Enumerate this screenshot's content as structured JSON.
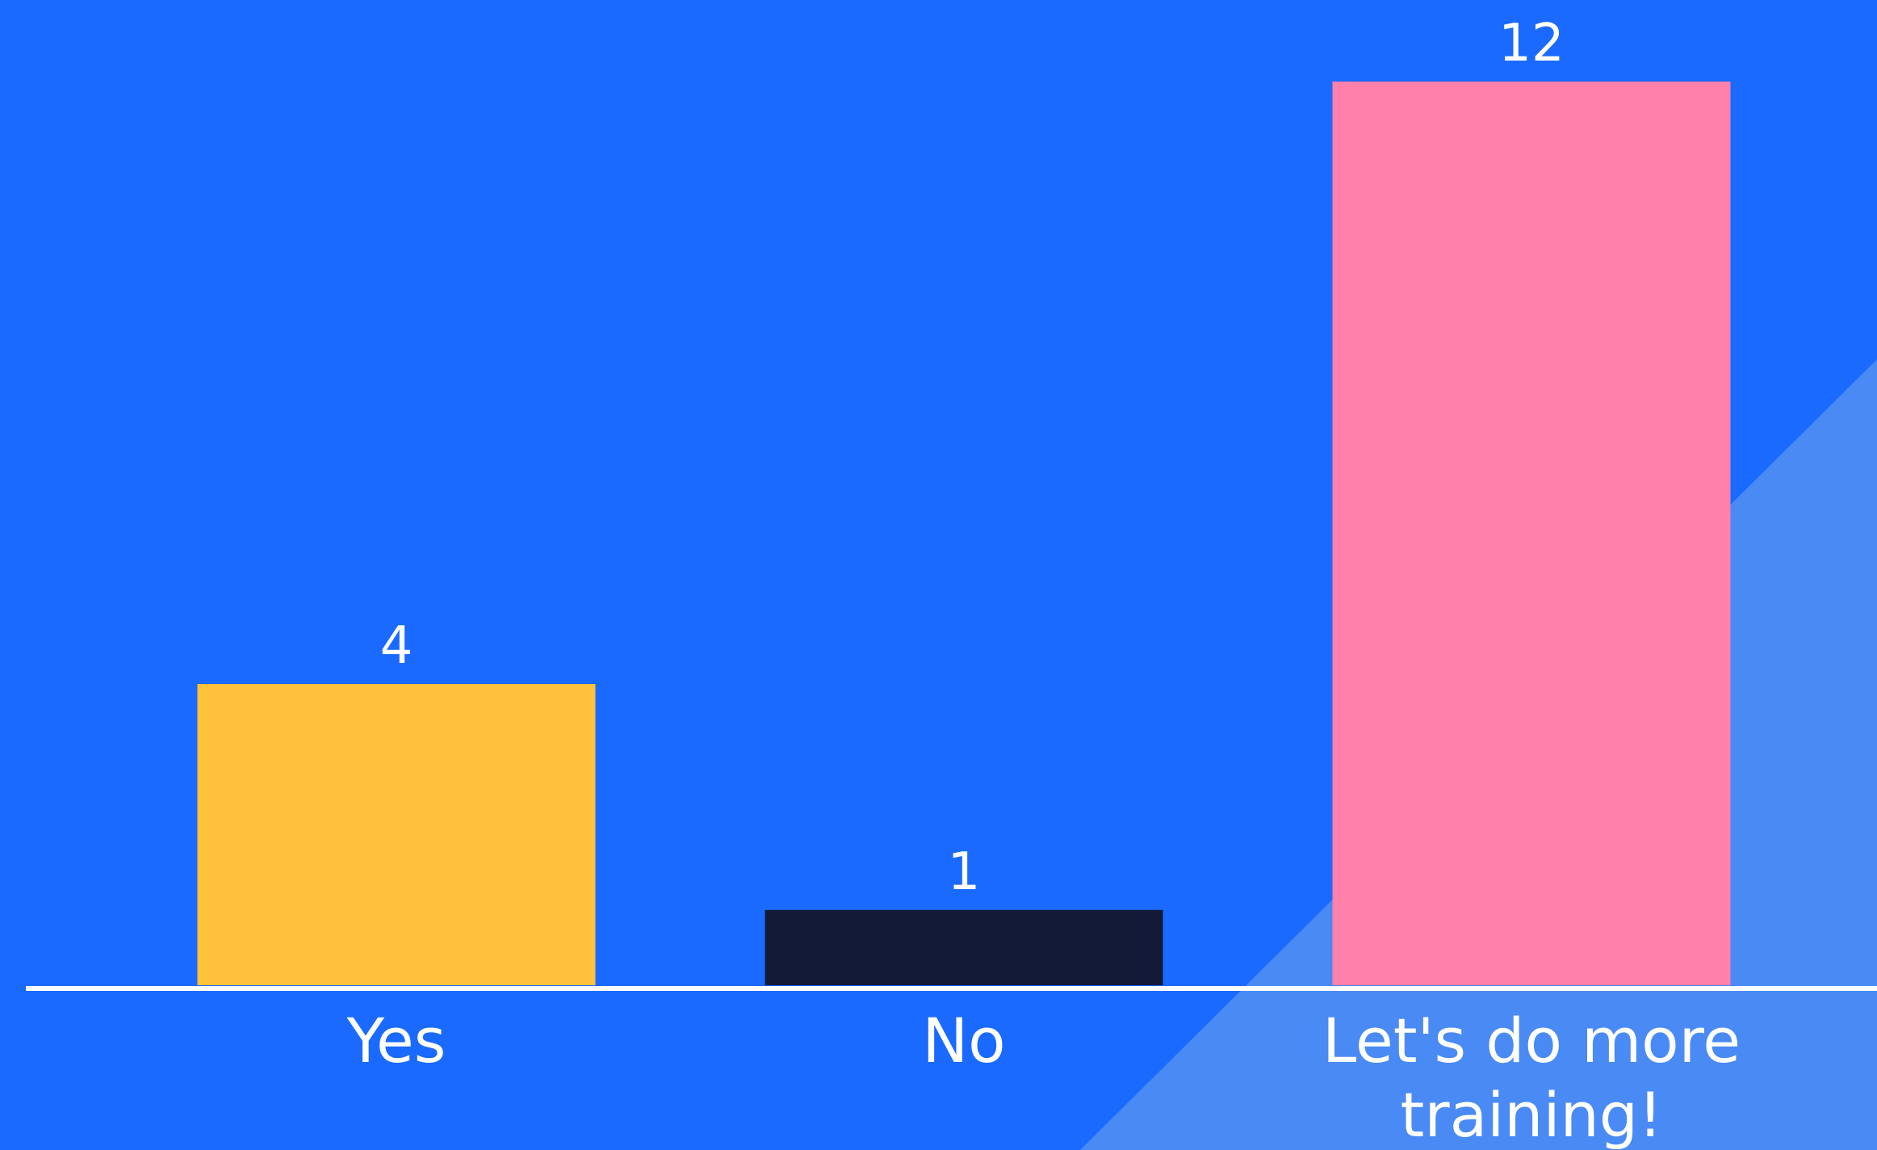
{
  "colors": {
    "background": "#1B6AFF",
    "background_accent": "#4A8AF5",
    "axis": "#FFFFFF",
    "text": "#FFFFFF"
  },
  "chart_data": {
    "type": "bar",
    "categories": [
      "Yes",
      "No",
      "Let's do more training!"
    ],
    "category_lines": [
      [
        "Yes"
      ],
      [
        "No"
      ],
      [
        "Let's do more",
        "training!"
      ]
    ],
    "values": [
      4,
      1,
      12
    ],
    "bar_colors": [
      "#FFC23A",
      "#131A38",
      "#FF80AA"
    ],
    "data_labels": [
      "4",
      "1",
      "12"
    ],
    "title": "",
    "xlabel": "",
    "ylabel": "",
    "ylim": [
      0,
      12
    ],
    "grid": false,
    "legend": "none"
  }
}
